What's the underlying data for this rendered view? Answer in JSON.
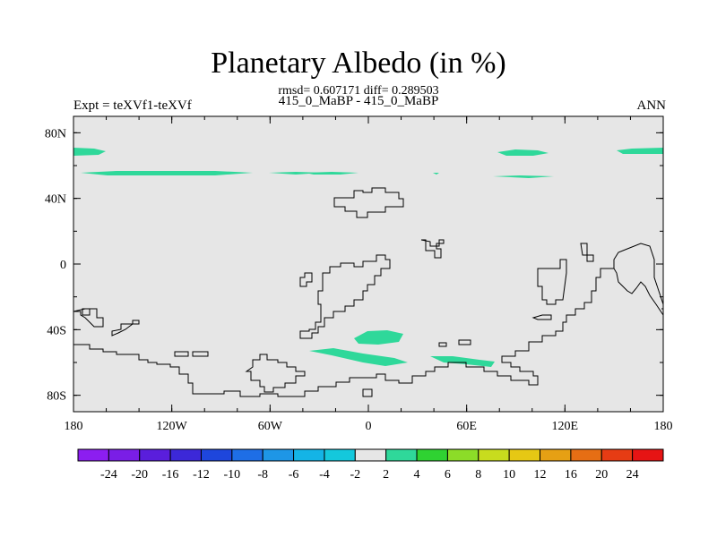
{
  "figure": {
    "title": "Planetary Albedo (in %)",
    "stats": "rmsd= 0.607171 diff= 0.289503",
    "subtitle": "415_0_MaBP - 415_0_MaBP",
    "left_label": "Expt = teXVf1-teXVf",
    "right_label": "ANN"
  },
  "colors": {
    "land_fill": "#e6e6e6",
    "coastline": "#000000",
    "anomaly_patch": "#2fd89a"
  },
  "map": {
    "projection": "cylindrical-equidistant",
    "lon_range": [
      -180,
      180
    ],
    "lat_range": [
      -90,
      90
    ],
    "lon_ticks": [
      {
        "value": -180,
        "label": "180"
      },
      {
        "value": -120,
        "label": "120W"
      },
      {
        "value": -60,
        "label": "60W"
      },
      {
        "value": 0,
        "label": "0"
      },
      {
        "value": 60,
        "label": "60E"
      },
      {
        "value": 120,
        "label": "120E"
      },
      {
        "value": 180,
        "label": "180"
      }
    ],
    "lat_ticks": [
      {
        "value": 80,
        "label": "80N"
      },
      {
        "value": 40,
        "label": "40N"
      },
      {
        "value": 0,
        "label": "0"
      },
      {
        "value": -40,
        "label": "40S"
      },
      {
        "value": -80,
        "label": "80S"
      }
    ]
  },
  "colorbar": {
    "labels": [
      "-24",
      "-20",
      "-16",
      "-12",
      "-10",
      "-8",
      "-6",
      "-4",
      "-2",
      "2",
      "4",
      "6",
      "8",
      "10",
      "12",
      "16",
      "20",
      "24"
    ],
    "colors": [
      "#8c1ef0",
      "#7a1ee6",
      "#5a1edc",
      "#3c28d8",
      "#1e46dc",
      "#1e6ee6",
      "#1e96e6",
      "#14b4e6",
      "#14c8dc",
      "#e6e6e6",
      "#2fd89a",
      "#2fd232",
      "#8cdc28",
      "#c8dc1e",
      "#e6c814",
      "#e6a014",
      "#e66e14",
      "#e63c14",
      "#e61414"
    ]
  }
}
